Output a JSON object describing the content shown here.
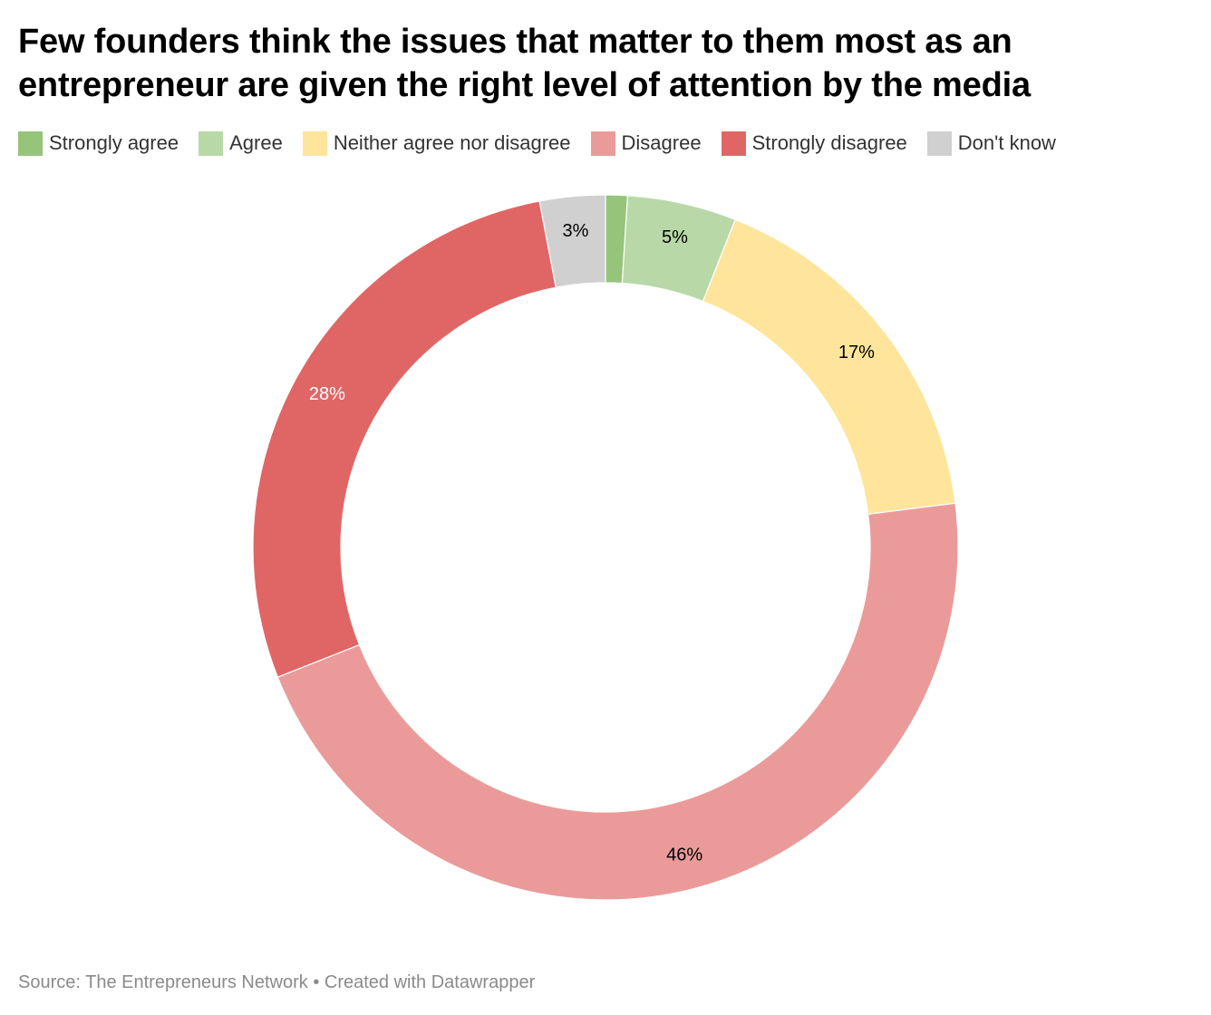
{
  "chart_data": {
    "type": "pie",
    "variant": "donut",
    "title": "Few founders think the issues that matter to them most as an entrepreneur are given the right level of attention by the media",
    "categories": [
      "Strongly agree",
      "Agree",
      "Neither agree nor disagree",
      "Disagree",
      "Strongly disagree",
      "Don't know"
    ],
    "values": [
      1,
      5,
      17,
      46,
      28,
      3
    ],
    "value_labels": [
      "",
      "5%",
      "17%",
      "46%",
      "28%",
      "3%"
    ],
    "colors": [
      "#95c47a",
      "#b8d9a7",
      "#fee59b",
      "#eb9a9a",
      "#e06666",
      "#d0d0d0"
    ],
    "label_colors": [
      "#000000",
      "#000000",
      "#000000",
      "#000000",
      "#ffffff",
      "#000000"
    ],
    "legend": {
      "position": "top-left",
      "items": [
        {
          "label": "Strongly agree",
          "color": "#95c47a"
        },
        {
          "label": "Agree",
          "color": "#b8d9a7"
        },
        {
          "label": "Neither agree nor disagree",
          "color": "#fee59b"
        },
        {
          "label": "Disagree",
          "color": "#eb9a9a"
        },
        {
          "label": "Strongly disagree",
          "color": "#e06666"
        },
        {
          "label": "Don't know",
          "color": "#d0d0d0"
        }
      ]
    },
    "source": "Source: The Entrepreneurs Network • Created with Datawrapper"
  }
}
